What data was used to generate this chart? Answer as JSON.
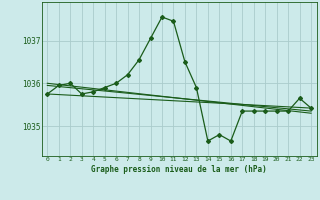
{
  "title": "Graphe pression niveau de la mer (hPa)",
  "background_color": "#cceaea",
  "grid_color": "#aacccc",
  "line_color": "#1a5c1a",
  "xlim": [
    -0.5,
    23.5
  ],
  "ylim": [
    1034.3,
    1037.9
  ],
  "yticks": [
    1035,
    1036,
    1037
  ],
  "xticks": [
    0,
    1,
    2,
    3,
    4,
    5,
    6,
    7,
    8,
    9,
    10,
    11,
    12,
    13,
    14,
    15,
    16,
    17,
    18,
    19,
    20,
    21,
    22,
    23
  ],
  "series1_x": [
    0,
    1,
    2,
    3,
    4,
    5,
    6,
    7,
    8,
    9,
    10,
    11,
    12,
    13,
    14,
    15,
    16,
    17,
    18,
    19,
    20,
    21,
    22,
    23
  ],
  "series1_y": [
    1035.75,
    1035.95,
    1036.0,
    1035.75,
    1035.8,
    1035.9,
    1036.0,
    1036.2,
    1036.55,
    1037.05,
    1037.55,
    1037.45,
    1036.5,
    1035.9,
    1034.65,
    1034.8,
    1034.65,
    1035.35,
    1035.35,
    1035.35,
    1035.35,
    1035.35,
    1035.65,
    1035.42
  ],
  "series2_x": [
    0,
    23
  ],
  "series2_y": [
    1035.75,
    1035.42
  ],
  "series3_x": [
    0,
    23
  ],
  "series3_y": [
    1035.95,
    1035.35
  ],
  "series4_x": [
    0,
    23
  ],
  "series4_y": [
    1036.0,
    1035.3
  ]
}
